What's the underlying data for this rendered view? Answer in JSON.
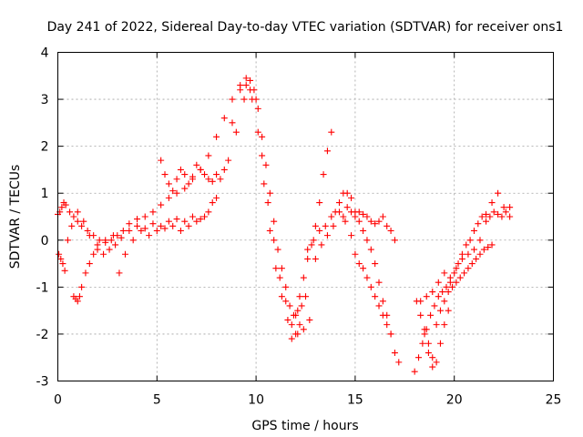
{
  "chart_data": {
    "type": "scatter",
    "title": "Day 241 of 2022, Sidereal Day-to-day VTEC variation (SDTVAR) for receiver ons1",
    "xlabel": "GPS time / hours",
    "ylabel": "SDTVAR / TECUs",
    "xlim": [
      0,
      25
    ],
    "ylim": [
      -3,
      4
    ],
    "x_ticks": [
      "0",
      "5",
      "10",
      "15",
      "20",
      "25"
    ],
    "y_ticks": [
      "-3",
      "-2",
      "-1",
      "0",
      "1",
      "2",
      "3",
      "4"
    ],
    "grid": true,
    "marker": "+",
    "color": "#ff0000",
    "series": [
      {
        "x": [
          0.0,
          0.1,
          0.2,
          0.3,
          0.4,
          0.6,
          0.8,
          1.0,
          1.2,
          1.5,
          1.8,
          2.1,
          2.4,
          2.7,
          3.0,
          3.3,
          3.6,
          4.0,
          4.4,
          4.8,
          5.2,
          5.6,
          6.0,
          6.4,
          6.8,
          7.2,
          7.6,
          8.0,
          8.4,
          8.8,
          9.2,
          9.5,
          9.7,
          9.9,
          10.1,
          10.3,
          10.5,
          10.7,
          10.9,
          11.1,
          11.3,
          11.5,
          11.7,
          11.9,
          12.1,
          12.3,
          12.5
        ],
        "y": [
          0.55,
          0.6,
          0.7,
          0.8,
          0.75,
          0.6,
          0.5,
          0.4,
          0.3,
          0.2,
          0.1,
          0.0,
          -0.05,
          0.0,
          0.1,
          0.2,
          0.35,
          0.45,
          0.5,
          0.6,
          0.75,
          0.9,
          1.0,
          1.1,
          1.3,
          1.5,
          1.8,
          2.2,
          2.6,
          3.0,
          3.3,
          3.45,
          3.4,
          3.2,
          2.8,
          2.2,
          1.6,
          1.0,
          0.4,
          -0.2,
          -0.6,
          -1.0,
          -1.4,
          -1.6,
          -1.5,
          -1.4,
          -1.2
        ]
      },
      {
        "x": [
          0.05,
          0.15,
          0.25,
          0.35,
          0.5,
          0.7,
          1.0,
          1.3,
          1.6,
          2.0,
          2.4,
          2.8,
          3.2,
          3.6,
          4.0,
          4.4,
          4.8,
          5.2,
          5.6,
          6.0,
          6.4,
          6.8,
          7.2,
          7.6,
          8.0,
          8.4,
          8.8,
          9.2,
          9.5,
          9.8,
          10.1,
          10.4,
          10.7,
          11.0,
          11.3,
          11.6,
          11.8,
          12.0,
          12.2
        ],
        "y": [
          -0.3,
          -0.4,
          -0.5,
          -0.65,
          0.0,
          0.3,
          0.6,
          0.4,
          0.1,
          -0.1,
          0.0,
          0.1,
          0.05,
          0.2,
          0.3,
          0.25,
          0.35,
          0.3,
          0.4,
          0.45,
          0.4,
          0.5,
          0.45,
          0.6,
          0.9,
          1.5,
          2.5,
          3.2,
          3.3,
          3.0,
          2.3,
          1.2,
          0.2,
          -0.6,
          -1.2,
          -1.7,
          -2.1,
          -2.0,
          -1.8
        ]
      },
      {
        "x": [
          0.8,
          0.9,
          1.0,
          1.1,
          1.2,
          1.4,
          1.6,
          1.8,
          2.0,
          2.3,
          2.6,
          2.9,
          3.1,
          3.4,
          3.8,
          4.2,
          4.6,
          5.0,
          5.4,
          5.8,
          6.2,
          6.6,
          7.0,
          7.4,
          7.8,
          8.2,
          8.6,
          9.0,
          9.4,
          9.7,
          10.0,
          10.3,
          10.6,
          10.9,
          11.2,
          11.5,
          11.8,
          12.1,
          12.4,
          12.7
        ],
        "y": [
          -1.2,
          -1.25,
          -1.3,
          -1.2,
          -1.0,
          -0.7,
          -0.5,
          -0.3,
          -0.2,
          -0.3,
          -0.2,
          -0.1,
          -0.7,
          -0.3,
          0.0,
          0.2,
          0.1,
          0.2,
          0.25,
          0.3,
          0.2,
          0.3,
          0.4,
          0.5,
          0.8,
          1.3,
          1.7,
          2.3,
          3.0,
          3.2,
          3.0,
          1.8,
          0.8,
          0.0,
          -0.8,
          -1.3,
          -1.8,
          -2.0,
          -1.9,
          -1.7
        ]
      },
      {
        "x": [
          5.2,
          5.4,
          5.6,
          5.8,
          6.0,
          6.2,
          6.4,
          6.6,
          6.8,
          7.0,
          7.2,
          7.4,
          7.6,
          7.8,
          8.0
        ],
        "y": [
          1.7,
          1.4,
          1.2,
          1.05,
          1.3,
          1.5,
          1.4,
          1.2,
          1.35,
          1.6,
          1.5,
          1.4,
          1.3,
          1.25,
          1.4
        ]
      },
      {
        "x": [
          12.0,
          12.2,
          12.4,
          12.6,
          12.8,
          13.0,
          13.2,
          13.4,
          13.6,
          13.8
        ],
        "y": [
          -1.6,
          -1.2,
          -0.8,
          -0.4,
          -0.1,
          0.3,
          0.8,
          1.4,
          1.9,
          2.3
        ]
      },
      {
        "x": [
          12.6,
          12.9,
          13.2,
          13.5,
          13.8,
          14.0,
          14.2,
          14.4,
          14.6,
          14.8,
          15.0,
          15.2,
          15.4,
          15.6,
          15.8,
          16.0,
          16.2,
          16.4,
          16.6,
          16.8,
          17.0,
          17.2
        ],
        "y": [
          -0.2,
          0.0,
          0.2,
          0.3,
          0.5,
          0.6,
          0.8,
          1.0,
          1.0,
          0.9,
          0.6,
          0.4,
          0.2,
          0.0,
          -0.2,
          -0.5,
          -0.9,
          -1.3,
          -1.6,
          -2.0,
          -2.4,
          -2.6
        ]
      },
      {
        "x": [
          13.0,
          13.3,
          13.6,
          13.9,
          14.2,
          14.5,
          14.8,
          15.0,
          15.2,
          15.4,
          15.6,
          15.8,
          16.0,
          16.2,
          16.4,
          16.6,
          16.8
        ],
        "y": [
          -0.4,
          -0.1,
          0.1,
          0.3,
          0.6,
          0.4,
          0.1,
          -0.3,
          -0.5,
          -0.6,
          -0.8,
          -1.0,
          -1.2,
          -1.4,
          -1.6,
          -1.8,
          -2.0
        ]
      },
      {
        "x": [
          14.4,
          14.6,
          14.8,
          15.0,
          15.2,
          15.4,
          15.6,
          15.8,
          16.0,
          16.2,
          16.4,
          16.6,
          16.8,
          17.0
        ],
        "y": [
          0.5,
          0.7,
          0.6,
          0.5,
          0.6,
          0.55,
          0.5,
          0.4,
          0.35,
          0.4,
          0.5,
          0.3,
          0.2,
          0.0
        ]
      },
      {
        "x": [
          18.0,
          18.2,
          18.4,
          18.6,
          18.8,
          19.0,
          19.2,
          19.4,
          19.6,
          19.8,
          20.0,
          20.2,
          20.4,
          20.6,
          20.8,
          21.0,
          21.2,
          21.4,
          21.6,
          21.8,
          22.0,
          22.2,
          22.4,
          22.6,
          22.8
        ],
        "y": [
          -2.8,
          -2.5,
          -2.2,
          -1.9,
          -1.6,
          -1.4,
          -1.2,
          -1.1,
          -1.0,
          -0.9,
          -0.7,
          -0.5,
          -0.3,
          -0.1,
          0.0,
          0.2,
          0.35,
          0.5,
          0.55,
          0.5,
          0.6,
          0.55,
          0.5,
          0.6,
          0.7
        ]
      },
      {
        "x": [
          18.1,
          18.3,
          18.5,
          18.7,
          18.9,
          19.1,
          19.3,
          19.5,
          19.7,
          19.9,
          20.1,
          20.3,
          20.5,
          20.7,
          20.9,
          21.1,
          21.3,
          21.5,
          21.7,
          21.9
        ],
        "y": [
          -1.3,
          -1.6,
          -1.9,
          -2.2,
          -2.5,
          -1.8,
          -1.5,
          -1.3,
          -1.1,
          -1.0,
          -0.9,
          -0.8,
          -0.7,
          -0.6,
          -0.5,
          -0.4,
          -0.3,
          -0.2,
          -0.15,
          -0.1
        ]
      },
      {
        "x": [
          18.3,
          18.6,
          18.9,
          19.2,
          19.5,
          19.8,
          20.1,
          20.4,
          20.7,
          21.0,
          21.3,
          21.6,
          21.9,
          22.2,
          22.5,
          22.8
        ],
        "y": [
          -1.3,
          -1.2,
          -1.1,
          -0.9,
          -0.7,
          -0.8,
          -0.6,
          -0.4,
          -0.3,
          -0.2,
          0.0,
          0.4,
          0.8,
          1.0,
          0.7,
          0.5
        ]
      },
      {
        "x": [
          18.5,
          18.7,
          18.9,
          19.1,
          19.3,
          19.5,
          19.7
        ],
        "y": [
          -2.0,
          -2.4,
          -2.7,
          -2.6,
          -2.2,
          -1.8,
          -1.5
        ]
      }
    ]
  }
}
